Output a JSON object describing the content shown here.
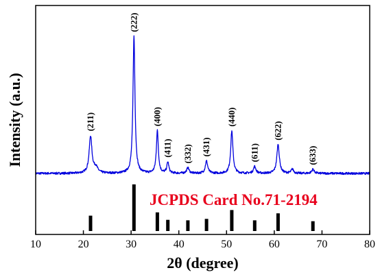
{
  "chart_data": {
    "type": "line",
    "title": "",
    "xlabel": "2θ (degree)",
    "ylabel": "Intensity (a.u.)",
    "xlim": [
      10,
      80
    ],
    "xticks": [
      10,
      20,
      30,
      40,
      50,
      60,
      70,
      80
    ],
    "y_tick_labels": false,
    "grid": false,
    "legend": "none",
    "series": [
      {
        "color": "#0000dd",
        "peaks": [
          {
            "x": 21.5,
            "height": 0.27,
            "width": 0.35
          },
          {
            "x": 22.6,
            "height": 0.04,
            "width": 0.5
          },
          {
            "x": 30.6,
            "height": 1.0,
            "width": 0.25
          },
          {
            "x": 35.5,
            "height": 0.31,
            "width": 0.25
          },
          {
            "x": 37.7,
            "height": 0.08,
            "width": 0.25
          },
          {
            "x": 41.9,
            "height": 0.04,
            "width": 0.3
          },
          {
            "x": 45.8,
            "height": 0.09,
            "width": 0.3
          },
          {
            "x": 51.1,
            "height": 0.31,
            "width": 0.28
          },
          {
            "x": 55.9,
            "height": 0.05,
            "width": 0.3
          },
          {
            "x": 60.8,
            "height": 0.21,
            "width": 0.32
          },
          {
            "x": 63.8,
            "height": 0.03,
            "width": 0.3
          },
          {
            "x": 68.1,
            "height": 0.03,
            "width": 0.3
          }
        ]
      }
    ],
    "peak_labels": [
      {
        "x": 21.5,
        "text": "(211)"
      },
      {
        "x": 30.6,
        "text": "(222)"
      },
      {
        "x": 35.5,
        "text": "(400)"
      },
      {
        "x": 37.7,
        "text": "(411)"
      },
      {
        "x": 41.9,
        "text": "(332)"
      },
      {
        "x": 45.8,
        "text": "(431)"
      },
      {
        "x": 51.1,
        "text": "(440)"
      },
      {
        "x": 55.9,
        "text": "(611)"
      },
      {
        "x": 60.8,
        "text": "(622)"
      },
      {
        "x": 68.1,
        "text": "(633)"
      }
    ],
    "reference": {
      "label": "JCPDS Card No.71-2194",
      "color": "#e8001c",
      "bar_color": "#000000",
      "lines": [
        {
          "x": 21.5,
          "intensity": 0.33
        },
        {
          "x": 30.6,
          "intensity": 1.0
        },
        {
          "x": 35.5,
          "intensity": 0.4
        },
        {
          "x": 37.7,
          "intensity": 0.24
        },
        {
          "x": 41.9,
          "intensity": 0.23
        },
        {
          "x": 45.8,
          "intensity": 0.26
        },
        {
          "x": 51.1,
          "intensity": 0.45
        },
        {
          "x": 55.9,
          "intensity": 0.23
        },
        {
          "x": 60.8,
          "intensity": 0.38
        },
        {
          "x": 68.1,
          "intensity": 0.21
        }
      ]
    }
  }
}
